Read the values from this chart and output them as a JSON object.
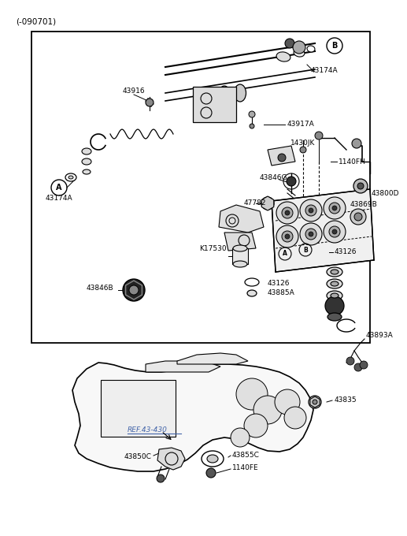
{
  "bg_color": "#ffffff",
  "border_color": "#000000",
  "text_color": "#000000",
  "ref_color": "#4466aa",
  "header_text": "(-090701)",
  "labels": {
    "B_top": "B",
    "43174A_top": "43174A",
    "43916": "43916",
    "1430JK": "1430JK",
    "43917A": "43917A",
    "1140FH": "1140FH",
    "43846G": "43846G",
    "47782": "47782",
    "A_left": "A",
    "43174A_left": "43174A",
    "43800D": "43800D",
    "43869B": "43869B",
    "K17530": "K17530",
    "B_mid": "B",
    "A_mid": "A",
    "43126_right": "43126",
    "43126_left": "43126",
    "43885A": "43885A",
    "43846B": "43846B",
    "43893A": "43893A",
    "43835": "43835",
    "REF": "REF.43-430",
    "43850C": "43850C",
    "43855C": "43855C",
    "1140FE": "1140FE"
  }
}
